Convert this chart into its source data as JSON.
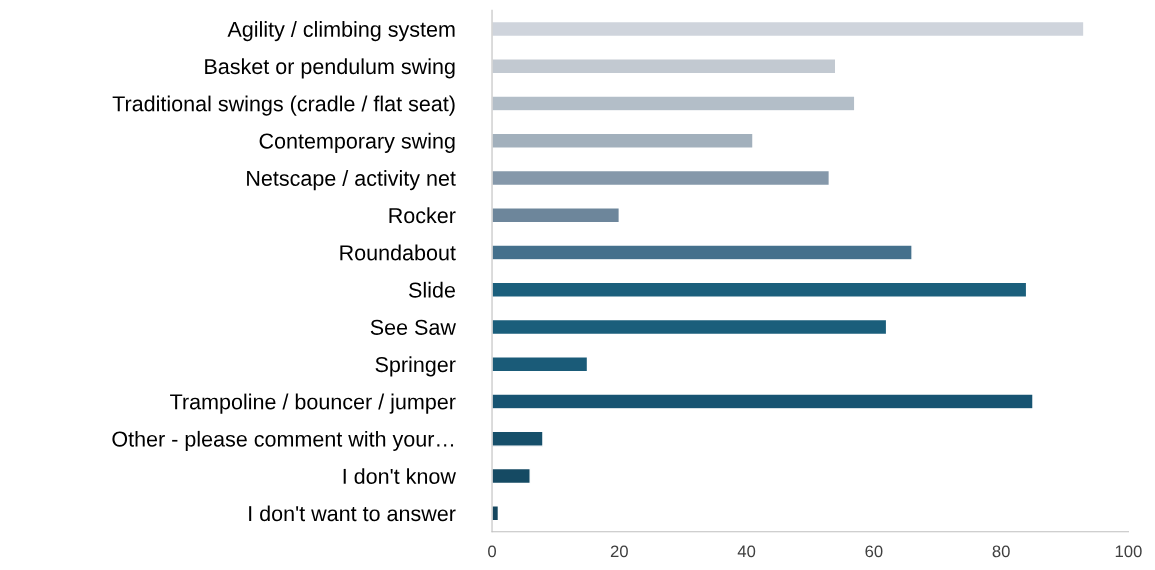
{
  "chart_data": {
    "type": "bar",
    "orientation": "horizontal",
    "categories": [
      "Agility / climbing system",
      "Basket or pendulum swing",
      "Traditional swings (cradle / flat seat)",
      "Contemporary swing",
      "Netscape / activity net",
      "Rocker",
      "Roundabout",
      "Slide",
      "See Saw",
      "Springer",
      "Trampoline / bouncer / jumper",
      "Other - please comment with your…",
      "I don't know",
      "I don't want to answer"
    ],
    "values": [
      93,
      54,
      57,
      41,
      53,
      20,
      66,
      84,
      62,
      15,
      85,
      8,
      6,
      1
    ],
    "colors": [
      "#cfd4dc",
      "#c2c9d1",
      "#b3bec8",
      "#a2b0bc",
      "#8598aa",
      "#6d869b",
      "#44708c",
      "#1b5f7c",
      "#1a5e7b",
      "#1a5b78",
      "#175472",
      "#164f6a",
      "#154a63",
      "#14465e"
    ],
    "xlim": [
      0,
      100
    ],
    "xticks": [
      0,
      20,
      40,
      60,
      80,
      100
    ],
    "grid": false,
    "legend": false
  }
}
